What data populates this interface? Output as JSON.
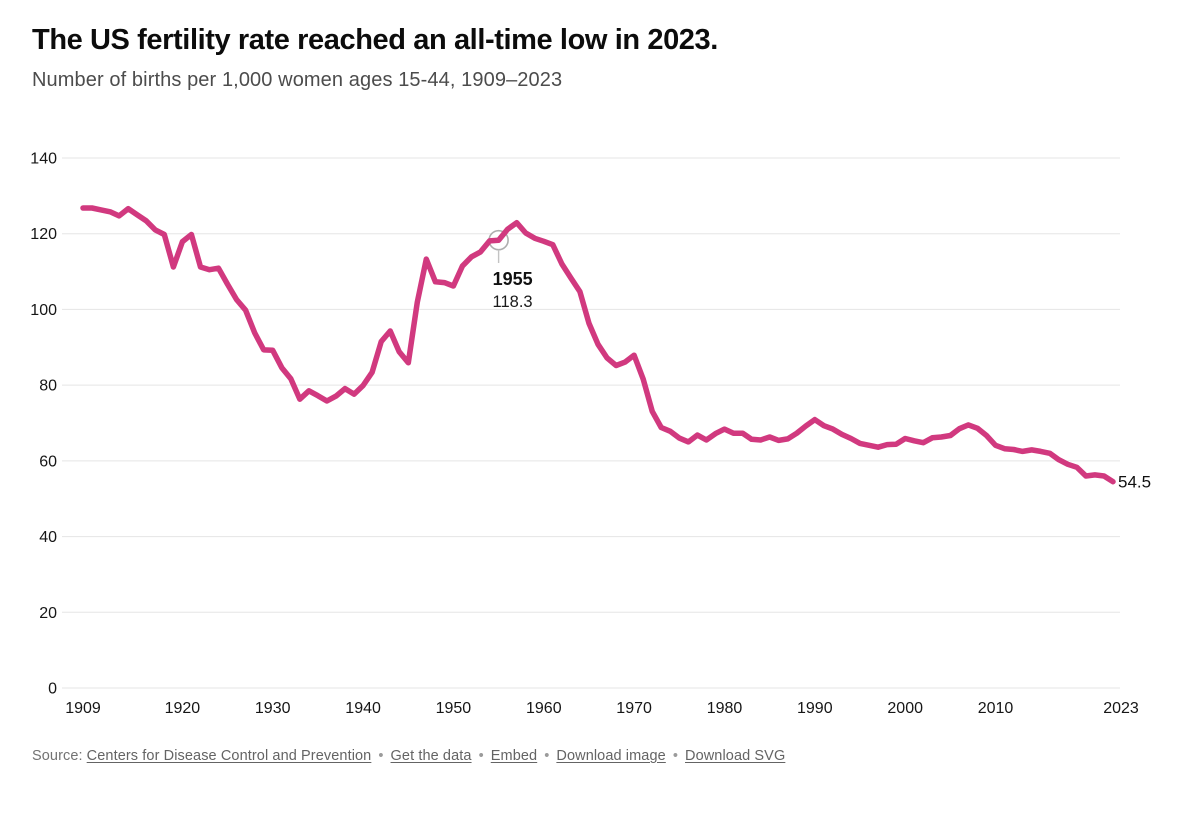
{
  "header": {
    "title": "The US fertility rate reached an all-time low in 2023.",
    "subtitle": "Number of births per 1,000 women ages 15-44, 1909–2023"
  },
  "chart_data": {
    "type": "line",
    "title": "The US fertility rate reached an all-time low in 2023.",
    "subtitle": "Number of births per 1,000 women ages 15-44, 1909–2023",
    "series_name": "Births per 1,000 women ages 15-44",
    "start_year": 1909,
    "end_year": 2023,
    "values": [
      126.8,
      126.8,
      126.3,
      125.8,
      124.7,
      126.6,
      125.0,
      123.4,
      121.0,
      119.8,
      111.2,
      117.9,
      119.8,
      111.2,
      110.5,
      110.9,
      106.6,
      102.6,
      99.8,
      93.8,
      89.3,
      89.2,
      84.6,
      81.7,
      76.3,
      78.5,
      77.2,
      75.8,
      77.1,
      79.1,
      77.6,
      79.9,
      83.4,
      91.5,
      94.3,
      88.8,
      85.9,
      101.9,
      113.3,
      107.3,
      107.1,
      106.2,
      111.5,
      113.9,
      115.2,
      118.1,
      118.3,
      121.2,
      122.9,
      120.2,
      118.8,
      118.0,
      117.1,
      112.0,
      108.3,
      104.7,
      96.3,
      90.8,
      87.2,
      85.2,
      86.1,
      87.9,
      81.6,
      73.1,
      68.8,
      67.8,
      66.0,
      65.0,
      66.8,
      65.5,
      67.2,
      68.4,
      67.3,
      67.3,
      65.7,
      65.5,
      66.3,
      65.4,
      65.8,
      67.3,
      69.2,
      70.9,
      69.3,
      68.4,
      67.0,
      65.9,
      64.6,
      64.1,
      63.6,
      64.3,
      64.4,
      65.9,
      65.3,
      64.8,
      66.1,
      66.3,
      66.7,
      68.5,
      69.5,
      68.6,
      66.7,
      64.1,
      63.2,
      63.0,
      62.5,
      62.9,
      62.5,
      62.0,
      60.3,
      59.1,
      58.3,
      56.0,
      56.3,
      56.0,
      54.5
    ],
    "y_ticks": [
      0,
      20,
      40,
      60,
      80,
      100,
      120,
      140
    ],
    "x_ticks": [
      1909,
      1920,
      1930,
      1940,
      1950,
      1960,
      1970,
      1980,
      1990,
      2000,
      2010,
      2023
    ],
    "ylim": [
      0,
      140
    ],
    "grid": "horizontal",
    "legend": "none",
    "line_color": "#d1397f",
    "annotation": {
      "year": 1955,
      "value": 118.3,
      "label_year": "1955",
      "label_value": "118.3"
    },
    "end_label": "54.5"
  },
  "footer": {
    "source_label": "Source:",
    "source_link": "Centers for Disease Control and Prevention",
    "separator": "•",
    "links": [
      "Get the data",
      "Embed",
      "Download image",
      "Download SVG"
    ]
  }
}
